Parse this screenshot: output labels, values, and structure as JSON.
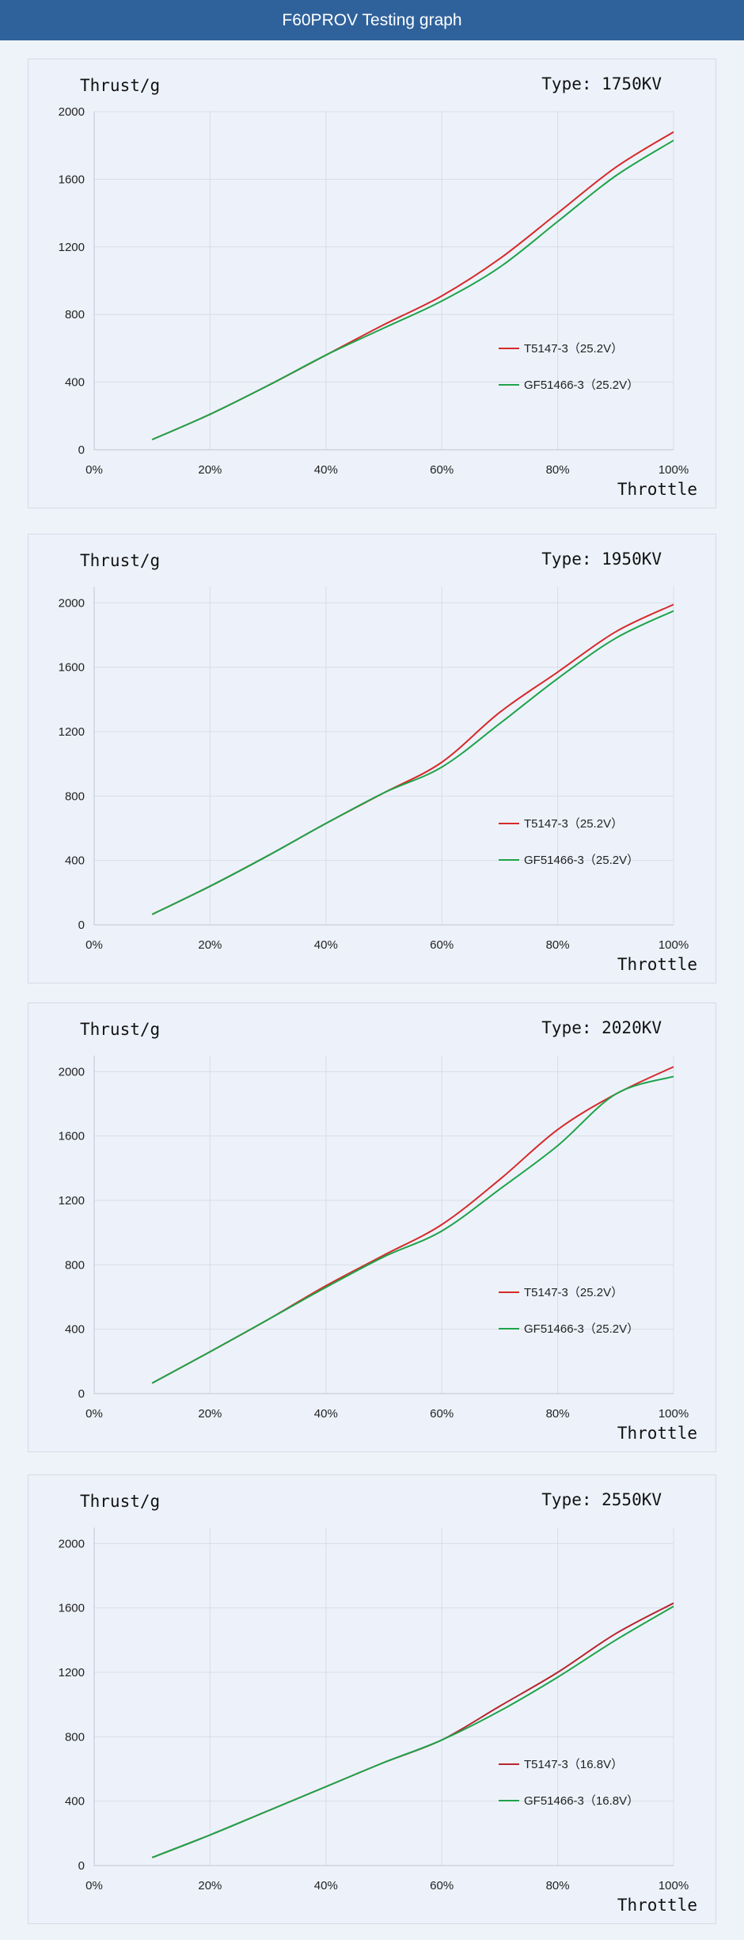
{
  "header": {
    "title": "F60PROV Testing graph"
  },
  "chart_data": [
    {
      "type": "line",
      "ylabel": "Thrust/g",
      "title": "Type: 1750KV",
      "xlabel": "Throttle",
      "x": [
        10,
        20,
        30,
        40,
        50,
        60,
        70,
        80,
        90,
        100
      ],
      "xticks": [
        "0%",
        "20%",
        "40%",
        "60%",
        "80%",
        "100%"
      ],
      "yticks": [
        "0",
        "400",
        "800",
        "1200",
        "1600",
        "2000"
      ],
      "xlim": [
        0,
        100
      ],
      "ylim": [
        0,
        2000
      ],
      "grid": true,
      "legend": "right",
      "series": [
        {
          "name": "T5147-3（25.2V）",
          "color": "#d62a2a",
          "values": [
            60,
            210,
            380,
            560,
            740,
            910,
            1130,
            1400,
            1670,
            1880
          ]
        },
        {
          "name": "GF51466-3（25.2V）",
          "color": "#1fa34a",
          "values": [
            60,
            210,
            380,
            560,
            720,
            880,
            1080,
            1350,
            1620,
            1830
          ]
        }
      ]
    },
    {
      "type": "line",
      "ylabel": "Thrust/g",
      "title": "Type: 1950KV",
      "xlabel": "Throttle",
      "x": [
        10,
        20,
        30,
        40,
        50,
        60,
        70,
        80,
        90,
        100
      ],
      "xticks": [
        "0%",
        "20%",
        "40%",
        "60%",
        "80%",
        "100%"
      ],
      "yticks": [
        "0",
        "400",
        "800",
        "1200",
        "1600",
        "2000"
      ],
      "xlim": [
        0,
        100
      ],
      "ylim": [
        0,
        2100
      ],
      "grid": true,
      "legend": "right",
      "series": [
        {
          "name": "T5147-3（25.2V）",
          "color": "#d62a2a",
          "values": [
            65,
            240,
            430,
            630,
            820,
            1010,
            1320,
            1570,
            1820,
            1990
          ]
        },
        {
          "name": "GF51466-3（25.2V）",
          "color": "#1fa34a",
          "values": [
            65,
            240,
            430,
            630,
            820,
            980,
            1250,
            1530,
            1780,
            1950
          ]
        }
      ]
    },
    {
      "type": "line",
      "ylabel": "Thrust/g",
      "title": "Type: 2020KV",
      "xlabel": "Throttle",
      "x": [
        10,
        20,
        30,
        40,
        50,
        60,
        70,
        80,
        90,
        100
      ],
      "xticks": [
        "0%",
        "20%",
        "40%",
        "60%",
        "80%",
        "100%"
      ],
      "yticks": [
        "0",
        "400",
        "800",
        "1200",
        "1600",
        "2000"
      ],
      "xlim": [
        0,
        100
      ],
      "ylim": [
        0,
        2100
      ],
      "grid": true,
      "legend": "right",
      "series": [
        {
          "name": "T5147-3（25.2V）",
          "color": "#d62a2a",
          "values": [
            65,
            260,
            460,
            670,
            860,
            1050,
            1330,
            1640,
            1860,
            2030
          ]
        },
        {
          "name": "GF51466-3（25.2V）",
          "color": "#1fa34a",
          "values": [
            65,
            260,
            460,
            660,
            850,
            1010,
            1270,
            1540,
            1860,
            1970
          ]
        }
      ]
    },
    {
      "type": "line",
      "ylabel": "Thrust/g",
      "title": "Type: 2550KV",
      "xlabel": "Throttle",
      "x": [
        10,
        20,
        30,
        40,
        50,
        60,
        70,
        80,
        90,
        100
      ],
      "xticks": [
        "0%",
        "20%",
        "40%",
        "60%",
        "80%",
        "100%"
      ],
      "yticks": [
        "0",
        "400",
        "800",
        "1200",
        "1600",
        "2000"
      ],
      "xlim": [
        0,
        100
      ],
      "ylim": [
        0,
        2100
      ],
      "grid": true,
      "legend": "right",
      "series": [
        {
          "name": "T5147-3（16.8V）",
          "color": "#b7252e",
          "values": [
            50,
            190,
            340,
            490,
            640,
            780,
            990,
            1200,
            1440,
            1630
          ]
        },
        {
          "name": "GF51466-3（16.8V）",
          "color": "#1fa34a",
          "values": [
            50,
            190,
            340,
            490,
            640,
            780,
            960,
            1170,
            1400,
            1610
          ]
        }
      ]
    }
  ]
}
